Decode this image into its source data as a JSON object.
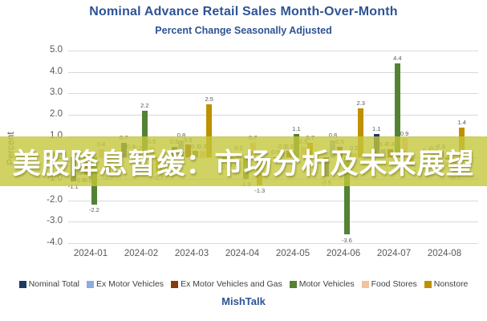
{
  "header": {
    "title": "Nominal Advance Retail Sales Month-Over-Month",
    "subtitle": "Percent Change Seasonally Adjusted"
  },
  "overlay": {
    "text": "美股降息暂缓：市场分析及未来展望",
    "background": "#c4c73c",
    "text_color": "#ffffff"
  },
  "y_axis": {
    "label": "Percent",
    "ticks": [
      "5.0",
      "4.0",
      "3.0",
      "2.0",
      "1.0",
      "0.0",
      "-1.0",
      "-2.0",
      "-3.0",
      "-4.0"
    ]
  },
  "source": {
    "label": "MishTalk"
  },
  "chart_data": {
    "type": "bar",
    "title": "Nominal Advance Retail Sales Month-Over-Month",
    "subtitle": "Percent Change Seasonally Adjusted",
    "xlabel": "",
    "ylabel": "Percent",
    "ylim": [
      -4.0,
      5.0
    ],
    "ytick_step": 1.0,
    "grid": true,
    "legend_position": "bottom",
    "categories": [
      "2024-01",
      "2024-02",
      "2024-03",
      "2024-04",
      "2024-05",
      "2024-06",
      "2024-07",
      "2024-08"
    ],
    "series": [
      {
        "name": "Nominal Total",
        "color": "#203864",
        "values": [
          -1.1,
          0.7,
          0.5,
          -0.2,
          0.0,
          -0.9,
          1.1,
          0.1
        ]
      },
      {
        "name": "Ex Motor Vehicles",
        "color": "#8faadc",
        "values": [
          -0.8,
          0.3,
          0.8,
          -0.1,
          0.3,
          0.8,
          0.4,
          0.2
        ]
      },
      {
        "name": "Ex Motor Vehicles and Gas",
        "color": "#843c0c",
        "values": [
          -0.8,
          0.2,
          0.6,
          0.2,
          0.3,
          0.5,
          0.4,
          0.3
        ]
      },
      {
        "name": "Motor Vehicles",
        "color": "#548235",
        "values": [
          -2.2,
          2.2,
          0.3,
          -1.0,
          1.1,
          -3.6,
          4.4,
          -0.1
        ]
      },
      {
        "name": "Food Stores",
        "color": "#f2c29a",
        "values": [
          0.4,
          0.5,
          0.3,
          0.7,
          0.5,
          0.2,
          0.9,
          -0.7
        ]
      },
      {
        "name": "Nonstore",
        "color": "#bf9000",
        "values": [
          -0.7,
          -0.7,
          2.5,
          -1.3,
          0.7,
          2.3,
          -0.4,
          1.4
        ]
      }
    ]
  }
}
